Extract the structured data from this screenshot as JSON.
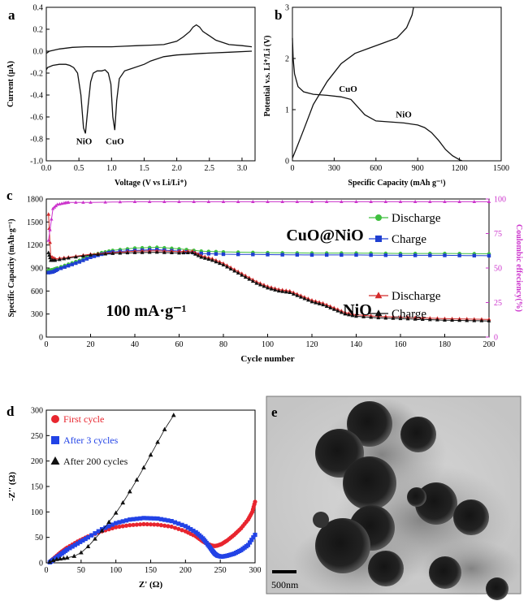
{
  "chart_data": [
    {
      "panel": "a",
      "type": "line",
      "xlabel": "Voltage (V vs Li/Li⁺)",
      "ylabel": "Current (μA)",
      "xlim": [
        0.0,
        3.2
      ],
      "ylim": [
        -1.0,
        0.4
      ],
      "x_ticks": [
        "0.0",
        "0.5",
        "1.0",
        "1.5",
        "2.0",
        "2.5",
        "3.0"
      ],
      "y_ticks": [
        "0.4",
        "0.2",
        "0.0",
        "-0.2",
        "-0.4",
        "-0.6",
        "-0.8",
        "-1.0"
      ],
      "annotations": [
        {
          "text": "NiO",
          "x": 0.58,
          "y": -0.82
        },
        {
          "text": "CuO",
          "x": 1.05,
          "y": -0.82
        }
      ],
      "series": [
        {
          "x": [
            0.0,
            0.05,
            0.2,
            0.4,
            0.6,
            0.8,
            1.0,
            1.2,
            1.4,
            1.6,
            1.8,
            2.0,
            2.1,
            2.2,
            2.25,
            2.3,
            2.35,
            2.4,
            2.5,
            2.6,
            2.8,
            3.0,
            3.15
          ],
          "y": [
            -0.02,
            0.0,
            0.02,
            0.035,
            0.04,
            0.04,
            0.04,
            0.045,
            0.05,
            0.055,
            0.06,
            0.09,
            0.13,
            0.18,
            0.22,
            0.24,
            0.22,
            0.18,
            0.14,
            0.1,
            0.06,
            0.05,
            0.04
          ]
        },
        {
          "x": [
            3.15,
            2.8,
            2.4,
            2.0,
            1.8,
            1.6,
            1.5,
            1.3,
            1.2,
            1.12,
            1.08,
            1.05,
            1.02,
            0.99,
            0.95,
            0.9,
            0.85,
            0.78,
            0.72,
            0.68,
            0.64,
            0.6,
            0.57,
            0.53,
            0.48,
            0.42,
            0.36,
            0.3,
            0.2,
            0.1,
            0.02,
            0.0
          ],
          "y": [
            0.0,
            -0.01,
            -0.02,
            -0.035,
            -0.05,
            -0.09,
            -0.12,
            -0.16,
            -0.18,
            -0.25,
            -0.45,
            -0.72,
            -0.6,
            -0.3,
            -0.2,
            -0.17,
            -0.18,
            -0.18,
            -0.2,
            -0.28,
            -0.5,
            -0.75,
            -0.7,
            -0.4,
            -0.2,
            -0.15,
            -0.13,
            -0.12,
            -0.12,
            -0.13,
            -0.15,
            -0.17
          ]
        }
      ]
    },
    {
      "panel": "b",
      "type": "line",
      "xlabel": "Specific Capacity (mAh g⁻¹)",
      "ylabel": "Potential v.s. Li⁺/Li (V)",
      "xlim": [
        0,
        1500
      ],
      "ylim": [
        0,
        3
      ],
      "x_ticks": [
        "0",
        "300",
        "600",
        "900",
        "1200",
        "1500"
      ],
      "y_ticks": [
        "0",
        "1",
        "2",
        "3"
      ],
      "annotations": [
        {
          "text": "CuO",
          "x": 400,
          "y": 1.35
        },
        {
          "text": "NiO",
          "x": 800,
          "y": 0.85
        }
      ],
      "series": [
        {
          "x": [
            0,
            5,
            15,
            40,
            80,
            150,
            250,
            350,
            420,
            470,
            520,
            600,
            700,
            800,
            900,
            950,
            1000,
            1050,
            1100,
            1150,
            1200,
            1220
          ],
          "y": [
            2.4,
            2.0,
            1.7,
            1.45,
            1.35,
            1.3,
            1.28,
            1.25,
            1.2,
            1.05,
            0.9,
            0.78,
            0.76,
            0.74,
            0.7,
            0.65,
            0.55,
            0.4,
            0.22,
            0.1,
            0.02,
            0.0
          ]
        },
        {
          "x": [
            0,
            30,
            80,
            150,
            250,
            350,
            450,
            550,
            650,
            750,
            820,
            860,
            870
          ],
          "y": [
            0.05,
            0.25,
            0.6,
            1.1,
            1.55,
            1.9,
            2.1,
            2.2,
            2.3,
            2.4,
            2.6,
            2.85,
            3.0
          ]
        }
      ]
    },
    {
      "panel": "c",
      "type": "scatter",
      "xlabel": "Cycle number",
      "ylabel": "Specific Capacity (mAh·g⁻¹)",
      "y2label": "Coulombic effeciency(%)",
      "xlim": [
        0,
        200
      ],
      "ylim": [
        0,
        1800
      ],
      "y2lim": [
        0,
        100
      ],
      "x_ticks": [
        "0",
        "20",
        "40",
        "60",
        "80",
        "100",
        "120",
        "140",
        "160",
        "180",
        "200"
      ],
      "y_ticks": [
        "0",
        "300",
        "600",
        "900",
        "1200",
        "1500",
        "1800"
      ],
      "y2_ticks": [
        "0",
        "25",
        "50",
        "75",
        "100"
      ],
      "annotations": [
        {
          "text": "100 mA·g⁻¹"
        },
        {
          "text": "CuO@NiO"
        },
        {
          "text": "NiO"
        }
      ],
      "legend": [
        {
          "label": "Discharge",
          "color": "#3fbf3f",
          "marker": "circle"
        },
        {
          "label": "Charge",
          "color": "#1f3fd1",
          "marker": "square"
        },
        {
          "label": "Discharge",
          "color": "#d42a2a",
          "marker": "triangle"
        },
        {
          "label": "Charge",
          "color": "#111111",
          "marker": "triangle"
        }
      ],
      "series": [
        {
          "name": "CuO@NiO Discharge",
          "color": "#3fbf3f",
          "x": [
            1,
            3,
            5,
            10,
            15,
            20,
            25,
            30,
            40,
            50,
            60,
            70,
            80,
            100,
            120,
            140,
            160,
            180,
            200
          ],
          "y": [
            870,
            880,
            900,
            950,
            1000,
            1060,
            1100,
            1130,
            1160,
            1170,
            1150,
            1120,
            1110,
            1100,
            1095,
            1095,
            1090,
            1090,
            1085
          ]
        },
        {
          "name": "CuO@NiO Charge",
          "color": "#1f3fd1",
          "x": [
            1,
            3,
            5,
            10,
            15,
            20,
            25,
            30,
            40,
            50,
            60,
            70,
            80,
            100,
            120,
            140,
            160,
            180,
            200
          ],
          "y": [
            840,
            850,
            880,
            930,
            980,
            1040,
            1080,
            1110,
            1130,
            1140,
            1120,
            1090,
            1080,
            1075,
            1070,
            1070,
            1065,
            1065,
            1060
          ]
        },
        {
          "name": "NiO Discharge",
          "color": "#d42a2a",
          "x": [
            1,
            2,
            4,
            10,
            20,
            30,
            40,
            50,
            60,
            66,
            70,
            75,
            80,
            85,
            90,
            95,
            100,
            105,
            110,
            115,
            120,
            125,
            130,
            135,
            140,
            150,
            160,
            170,
            180,
            190,
            200
          ],
          "y": [
            1600,
            1050,
            1020,
            1040,
            1080,
            1100,
            1120,
            1125,
            1115,
            1120,
            1060,
            1020,
            960,
            880,
            800,
            720,
            660,
            620,
            600,
            540,
            480,
            440,
            380,
            320,
            290,
            270,
            260,
            250,
            240,
            235,
            230
          ]
        },
        {
          "name": "NiO Charge",
          "color": "#111111",
          "x": [
            1,
            2,
            4,
            10,
            20,
            30,
            40,
            50,
            60,
            66,
            70,
            75,
            80,
            85,
            90,
            95,
            100,
            105,
            110,
            115,
            120,
            125,
            130,
            135,
            140,
            150,
            160,
            170,
            180,
            190,
            200
          ],
          "y": [
            1100,
            1000,
            1000,
            1030,
            1070,
            1090,
            1100,
            1105,
            1095,
            1100,
            1040,
            1000,
            940,
            860,
            780,
            700,
            640,
            600,
            580,
            520,
            460,
            420,
            360,
            300,
            270,
            250,
            240,
            230,
            220,
            215,
            210
          ]
        },
        {
          "name": "Coulombic efficiency",
          "color": "#cc33cc",
          "axis": "y2",
          "x": [
            1,
            3,
            5,
            8,
            10,
            20,
            40,
            60,
            80,
            100,
            120,
            140,
            160,
            180,
            200
          ],
          "y": [
            70,
            93,
            96,
            97,
            97.5,
            97.5,
            98,
            98,
            98,
            98,
            98,
            98,
            98,
            98,
            98
          ]
        }
      ]
    },
    {
      "panel": "d",
      "type": "scatter",
      "xlabel": "Z' (Ω)",
      "ylabel": "-Z'' (Ω)",
      "xlim": [
        0,
        300
      ],
      "ylim": [
        0,
        300
      ],
      "x_ticks": [
        "0",
        "50",
        "100",
        "150",
        "200",
        "250",
        "300"
      ],
      "y_ticks": [
        "0",
        "50",
        "100",
        "150",
        "200",
        "250",
        "300"
      ],
      "legend": [
        {
          "label": "First cycle",
          "color": "#e8252e",
          "marker": "circle"
        },
        {
          "label": "After 3 cycles",
          "color": "#2243e6",
          "marker": "square"
        },
        {
          "label": "After 200 cycles",
          "color": "#111111",
          "marker": "triangle"
        }
      ],
      "series": [
        {
          "name": "First cycle",
          "color": "#e8252e",
          "x": [
            5,
            10,
            20,
            30,
            45,
            60,
            80,
            100,
            120,
            140,
            160,
            180,
            200,
            215,
            225,
            232,
            238,
            242,
            246,
            252,
            260,
            270,
            280,
            290,
            296,
            300
          ],
          "y": [
            2,
            8,
            20,
            30,
            42,
            52,
            62,
            70,
            74,
            76,
            75,
            71,
            62,
            52,
            42,
            37,
            34,
            33,
            34,
            37,
            44,
            55,
            68,
            85,
            100,
            120
          ]
        },
        {
          "name": "After 3 cycles",
          "color": "#2243e6",
          "x": [
            5,
            10,
            20,
            30,
            45,
            60,
            80,
            100,
            120,
            140,
            160,
            180,
            200,
            215,
            225,
            232,
            238,
            242,
            246,
            252,
            260,
            270,
            280,
            290,
            300
          ],
          "y": [
            1,
            6,
            16,
            26,
            38,
            50,
            66,
            78,
            85,
            88,
            87,
            82,
            72,
            60,
            48,
            36,
            25,
            18,
            14,
            12,
            14,
            18,
            25,
            35,
            55
          ]
        },
        {
          "name": "After 200 cycles",
          "color": "#111111",
          "x": [
            5,
            10,
            15,
            20,
            25,
            30,
            40,
            50,
            60,
            70,
            80,
            90,
            100,
            110,
            120,
            130,
            140,
            150,
            160,
            170,
            183
          ],
          "y": [
            2,
            5,
            7,
            8,
            9,
            10,
            13,
            20,
            32,
            47,
            63,
            80,
            98,
            118,
            140,
            163,
            187,
            212,
            237,
            262,
            290
          ]
        }
      ]
    }
  ],
  "panels": {
    "a": {
      "letter": "a"
    },
    "b": {
      "letter": "b"
    },
    "c": {
      "letter": "c"
    },
    "d": {
      "letter": "d"
    },
    "e": {
      "letter": "e",
      "scale_bar": "500nm"
    }
  }
}
